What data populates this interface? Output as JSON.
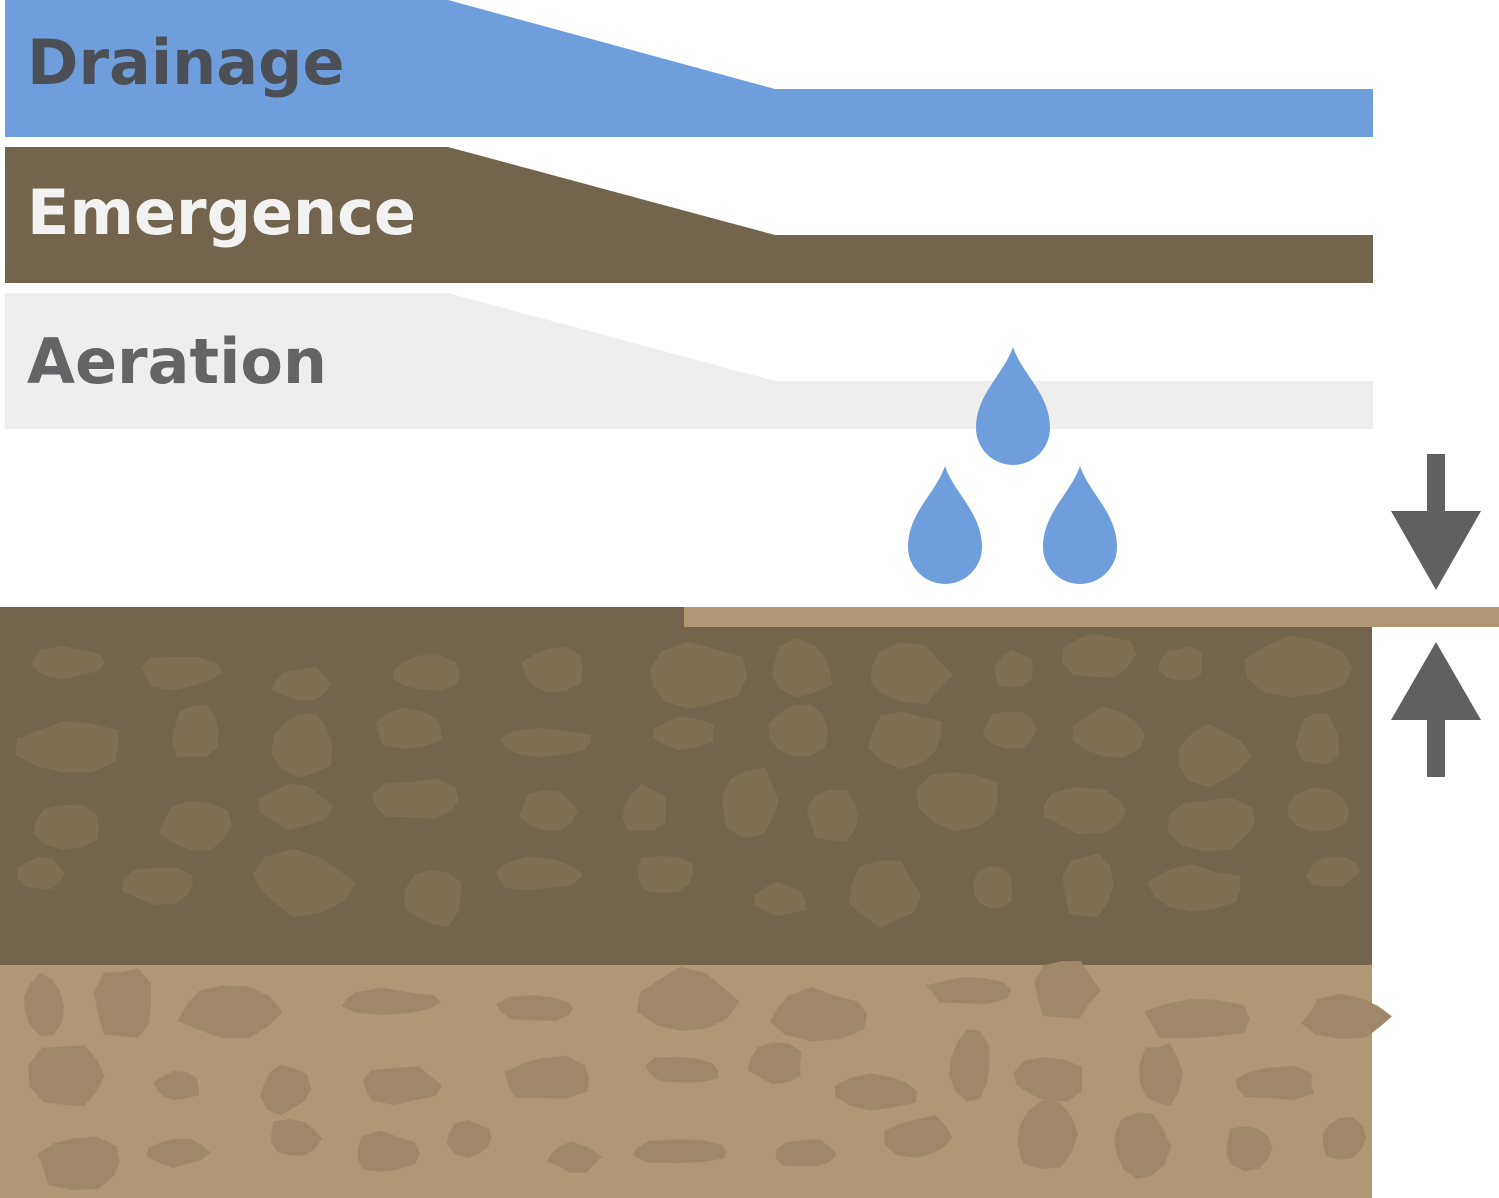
{
  "bands": [
    {
      "id": "drainage",
      "label": "Drainage",
      "fill": "#6e9fdc",
      "text_color": "#4d4f56"
    },
    {
      "id": "emergence",
      "label": "Emergence",
      "fill": "#73644d",
      "text_color": "#f2f2f2"
    },
    {
      "id": "aeration",
      "label": "Aeration",
      "fill": "#eeeeee",
      "text_color": "#646466"
    }
  ],
  "soil": {
    "topsoil_color": "#73644d",
    "topsoil_stone_color": "#7e6e54",
    "subsoil_color": "#b09874",
    "subsoil_stone_color": "#9f8868",
    "surface_layer_color": "#b09874"
  },
  "water_drop_color": "#6e9fdc",
  "water_drop_count": 3,
  "compression_arrow_color": "#606060",
  "icons": [
    "water-drop-icon",
    "arrow-down-icon",
    "arrow-up-icon"
  ]
}
